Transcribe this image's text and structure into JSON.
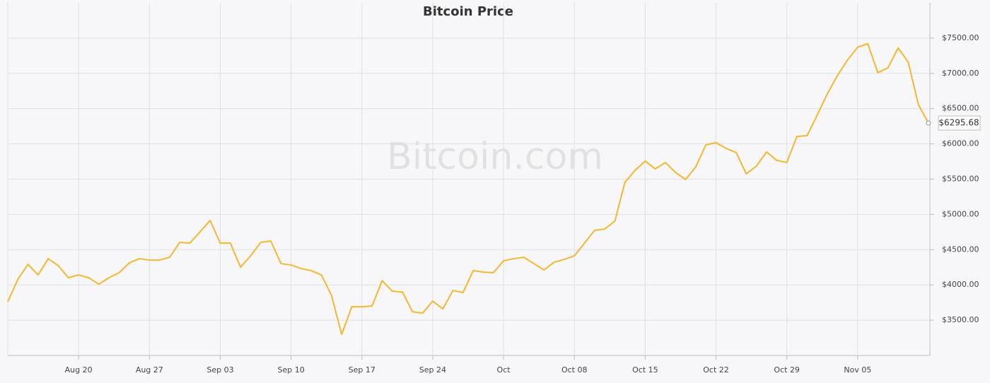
{
  "chart_data": {
    "type": "line",
    "title": "Bitcoin Price",
    "watermark": "Bitcoin.com",
    "x": [
      "Aug 13",
      "Aug 14",
      "Aug 15",
      "Aug 16",
      "Aug 17",
      "Aug 18",
      "Aug 19",
      "Aug 20",
      "Aug 21",
      "Aug 22",
      "Aug 23",
      "Aug 24",
      "Aug 25",
      "Aug 26",
      "Aug 27",
      "Aug 28",
      "Aug 29",
      "Aug 30",
      "Aug 31",
      "Sep 01",
      "Sep 02",
      "Sep 03",
      "Sep 04",
      "Sep 05",
      "Sep 06",
      "Sep 07",
      "Sep 08",
      "Sep 09",
      "Sep 10",
      "Sep 11",
      "Sep 12",
      "Sep 13",
      "Sep 14",
      "Sep 15",
      "Sep 16",
      "Sep 17",
      "Sep 18",
      "Sep 19",
      "Sep 20",
      "Sep 21",
      "Sep 22",
      "Sep 23",
      "Sep 24",
      "Sep 25",
      "Sep 26",
      "Sep 27",
      "Sep 28",
      "Sep 29",
      "Sep 30",
      "Oct 01",
      "Oct 02",
      "Oct 03",
      "Oct 04",
      "Oct 05",
      "Oct 06",
      "Oct 07",
      "Oct 08",
      "Oct 09",
      "Oct 10",
      "Oct 11",
      "Oct 12",
      "Oct 13",
      "Oct 14",
      "Oct 15",
      "Oct 16",
      "Oct 17",
      "Oct 18",
      "Oct 19",
      "Oct 20",
      "Oct 21",
      "Oct 22",
      "Oct 23",
      "Oct 24",
      "Oct 25",
      "Oct 26",
      "Oct 27",
      "Oct 28",
      "Oct 29",
      "Oct 30",
      "Oct 31",
      "Nov 01",
      "Nov 02",
      "Nov 03",
      "Nov 04",
      "Nov 05",
      "Nov 06",
      "Nov 07",
      "Nov 08",
      "Nov 09",
      "Nov 10",
      "Nov 11",
      "Nov 12"
    ],
    "series": [
      {
        "name": "Bitcoin Price",
        "color": "#f4b731",
        "values": [
          3761,
          4081,
          4292,
          4142,
          4372,
          4272,
          4102,
          4142,
          4102,
          4011,
          4102,
          4172,
          4312,
          4372,
          4352,
          4352,
          4392,
          4603,
          4593,
          4753,
          4914,
          4593,
          4593,
          4252,
          4412,
          4603,
          4623,
          4302,
          4282,
          4232,
          4202,
          4142,
          3851,
          3299,
          3690,
          3690,
          3700,
          4061,
          3911,
          3901,
          3620,
          3600,
          3771,
          3660,
          3921,
          3891,
          4202,
          4182,
          4172,
          4342,
          4372,
          4392,
          4302,
          4212,
          4322,
          4362,
          4412,
          4593,
          4773,
          4793,
          4904,
          5455,
          5625,
          5756,
          5645,
          5736,
          5595,
          5495,
          5675,
          5986,
          6016,
          5936,
          5876,
          5575,
          5686,
          5886,
          5766,
          5736,
          6106,
          6116,
          6407,
          6708,
          6969,
          7189,
          7370,
          7420,
          7009,
          7079,
          7360,
          7159,
          6558,
          6295.68
        ],
        "value_labels": [
          null,
          null,
          null,
          null,
          null,
          null,
          null,
          null,
          null,
          null,
          null,
          null,
          null,
          null,
          null,
          null,
          null,
          null,
          null,
          null,
          null,
          null,
          null,
          null,
          null,
          null,
          null,
          null,
          null,
          null,
          null,
          null,
          null,
          null,
          null,
          null,
          null,
          null,
          null,
          null,
          null,
          null,
          null,
          null,
          null,
          null,
          null,
          null,
          null,
          null,
          null,
          null,
          null,
          null,
          null,
          null,
          null,
          null,
          null,
          null,
          null,
          null,
          null,
          null,
          null,
          null,
          null,
          null,
          null,
          null,
          null,
          null,
          null,
          null,
          null,
          null,
          null,
          null,
          null,
          null,
          null,
          null,
          null,
          null,
          null,
          null,
          null,
          null,
          null,
          null,
          null,
          "$6295.68"
        ]
      }
    ],
    "ylim": [
      3000,
      8000
    ],
    "yticks": [
      {
        "value": 3500,
        "label": "$3500.00"
      },
      {
        "value": 4000,
        "label": "$4000.00"
      },
      {
        "value": 4500,
        "label": "$4500.00"
      },
      {
        "value": 5000,
        "label": "$5000.00"
      },
      {
        "value": 5500,
        "label": "$5500.00"
      },
      {
        "value": 6000,
        "label": "$6000.00"
      },
      {
        "value": 6500,
        "label": "$6500.00"
      },
      {
        "value": 7000,
        "label": "$7000.00"
      },
      {
        "value": 7500,
        "label": "$7500.00"
      }
    ],
    "xticks": [
      "Aug 20",
      "Aug 27",
      "Sep 03",
      "Sep 10",
      "Sep 17",
      "Sep 24",
      {
        "value": "Oct 01",
        "label": "Oct"
      },
      "Oct 08",
      "Oct 15",
      "Oct 22",
      "Oct 29",
      "Nov 05"
    ],
    "grid": true
  }
}
